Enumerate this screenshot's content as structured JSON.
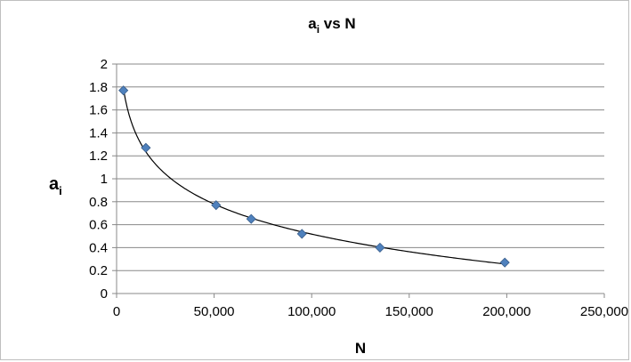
{
  "chart_data": {
    "type": "scatter",
    "title": "a",
    "title_subscript": "i",
    "title_suffix": " vs N",
    "xlabel": "N",
    "ylabel": "a",
    "ylabel_subscript": "i",
    "xlim": [
      0,
      250000
    ],
    "ylim": [
      0,
      2
    ],
    "x_ticks": [
      0,
      50000,
      100000,
      150000,
      200000,
      250000
    ],
    "x_tick_labels": [
      "0",
      "50,000",
      "100,000",
      "150,000",
      "200,000",
      "250,000"
    ],
    "y_ticks": [
      0,
      0.2,
      0.4,
      0.6,
      0.8,
      1,
      1.2,
      1.4,
      1.6,
      1.8,
      2
    ],
    "y_tick_labels": [
      "0",
      "0.2",
      "0.4",
      "0.6",
      "0.8",
      "1",
      "1.2",
      "1.4",
      "1.6",
      "1.8",
      "2"
    ],
    "grid": "horizontal",
    "marker": "diamond",
    "marker_color": "#4f81bd",
    "trendline": "logarithmic",
    "trendline_color": "#000000",
    "series": [
      {
        "x": [
          3500,
          15000,
          51000,
          69000,
          95000,
          135000,
          199000
        ],
        "y": [
          1.77,
          1.27,
          0.77,
          0.65,
          0.52,
          0.4,
          0.27
        ]
      }
    ]
  }
}
